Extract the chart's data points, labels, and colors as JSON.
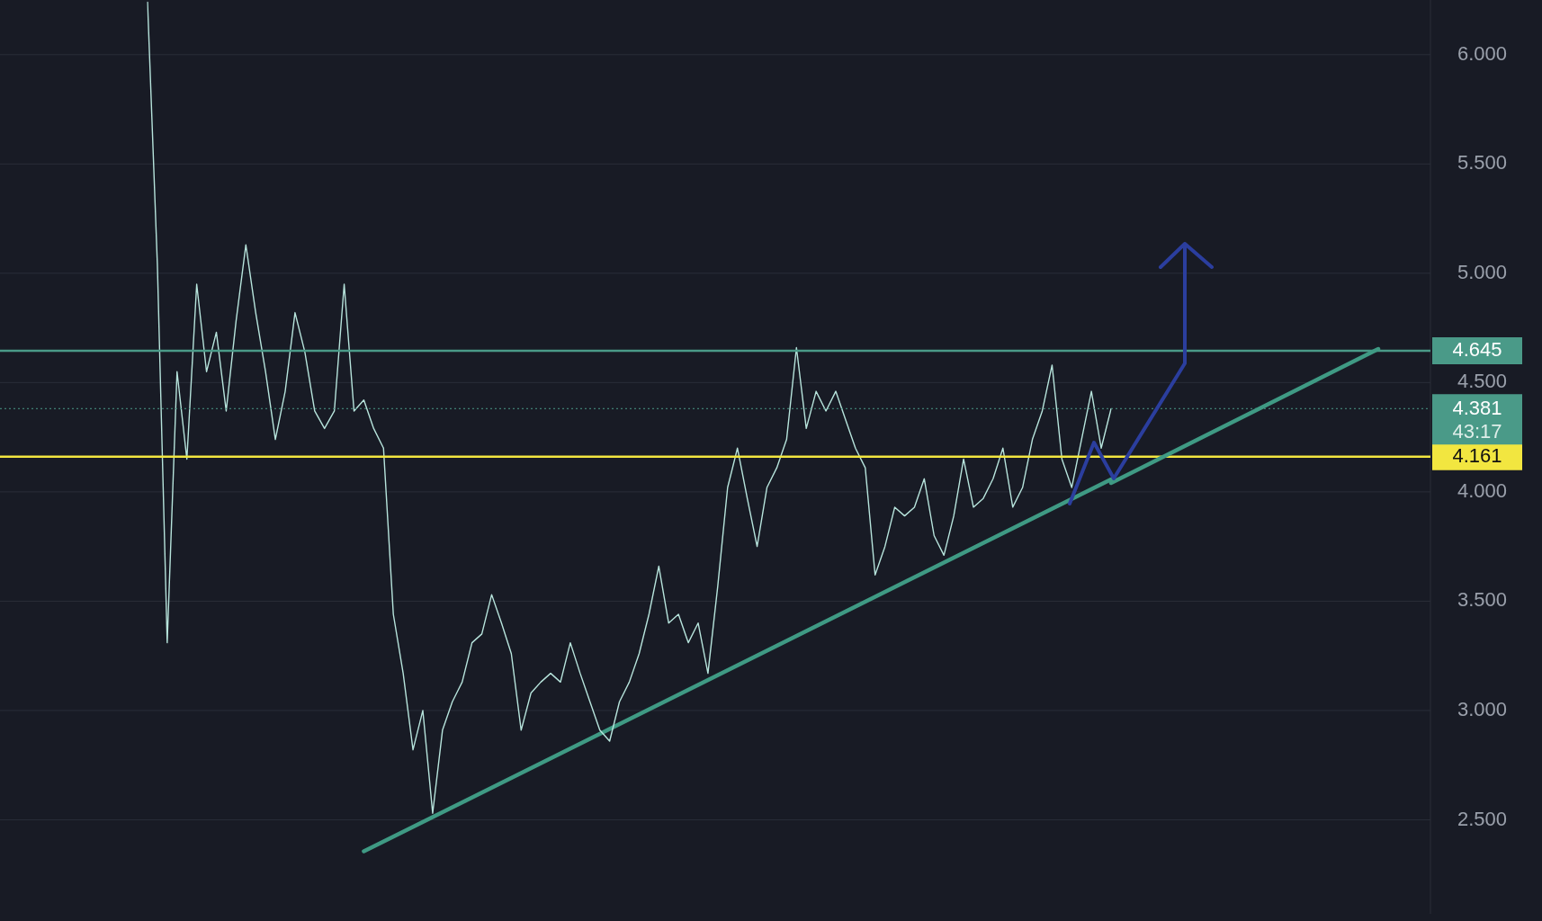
{
  "chart_data": {
    "type": "line",
    "tick_labels": "y",
    "grid": "y",
    "legend": false,
    "marker": "none",
    "categories": [
      null,
      null,
      null,
      null,
      null,
      null,
      null,
      null,
      null,
      null,
      null,
      null,
      null,
      null,
      null,
      null,
      null,
      null,
      null,
      null,
      null,
      null,
      null,
      null,
      null,
      null,
      null,
      null,
      null,
      null,
      null,
      null,
      null,
      null,
      null,
      null,
      null,
      null,
      null,
      null,
      null,
      null,
      null,
      null,
      null,
      null,
      null,
      null,
      null,
      null,
      null,
      null,
      null,
      null,
      null,
      null,
      null,
      null,
      null,
      null,
      null,
      null,
      null,
      null,
      null,
      null,
      null,
      null,
      null,
      null,
      null,
      null,
      null,
      null,
      null,
      null,
      null,
      null,
      null,
      null,
      null,
      null,
      null,
      null,
      null,
      null,
      null,
      null,
      null,
      null,
      null,
      null,
      null,
      null,
      null,
      null,
      null,
      null,
      null
    ],
    "ylim": [
      2.07,
      6.25
    ],
    "yticks": [
      {
        "value": 2.5,
        "label": "2.500"
      },
      {
        "value": 3,
        "label": "3.000"
      },
      {
        "value": 3.5,
        "label": "3.500"
      },
      {
        "value": 4,
        "label": "4.000"
      },
      {
        "value": 4.5,
        "label": "4.500"
      },
      {
        "value": 5,
        "label": "5.000"
      },
      {
        "value": 5.5,
        "label": "5.500"
      },
      {
        "value": 6,
        "label": "6.000"
      }
    ],
    "series": [
      {
        "color": "#b7e4dc",
        "values": [
          6.24,
          5.04,
          3.31,
          4.55,
          4.15,
          4.95,
          4.55,
          4.73,
          4.37,
          4.78,
          5.13,
          4.82,
          4.55,
          4.24,
          4.46,
          4.82,
          4.64,
          4.37,
          4.29,
          4.37,
          4.95,
          4.37,
          4.42,
          4.29,
          4.2,
          3.44,
          3.17,
          2.82,
          3.0,
          2.53,
          2.91,
          3.04,
          3.13,
          3.31,
          3.35,
          3.53,
          3.4,
          3.26,
          2.91,
          3.08,
          3.13,
          3.17,
          3.13,
          3.31,
          3.17,
          3.04,
          2.91,
          2.86,
          3.04,
          3.13,
          3.26,
          3.44,
          3.66,
          3.4,
          3.44,
          3.31,
          3.4,
          3.17,
          3.57,
          4.02,
          4.2,
          3.97,
          3.75,
          4.02,
          4.11,
          4.24,
          4.66,
          4.29,
          4.46,
          4.37,
          4.46,
          4.33,
          4.2,
          4.11,
          3.62,
          3.75,
          3.93,
          3.89,
          3.93,
          4.06,
          3.8,
          3.71,
          3.89,
          4.15,
          3.93,
          3.97,
          4.06,
          4.2,
          3.93,
          4.02,
          4.24,
          4.37,
          4.58,
          4.15,
          4.02,
          4.24,
          4.46,
          4.2,
          4.38
        ]
      },
      {
        "color": "#3f9a84",
        "values": [
          null,
          null,
          null,
          null,
          null,
          null,
          null,
          null,
          null,
          null,
          null,
          null,
          null,
          null,
          null,
          null,
          null,
          null,
          null,
          null,
          null,
          null,
          2.356,
          null,
          null,
          null,
          null,
          null,
          null,
          null,
          null,
          null,
          null,
          null,
          null,
          null,
          null,
          null,
          null,
          null,
          null,
          null,
          null,
          null,
          null,
          null,
          null,
          null,
          null,
          null,
          null,
          null,
          null,
          null,
          null,
          null,
          null,
          null,
          null,
          null,
          null,
          null,
          null,
          null,
          null,
          null,
          null,
          null,
          null,
          null,
          null,
          null,
          null,
          null,
          null,
          null,
          null,
          null,
          null,
          null,
          null,
          null,
          null,
          null,
          null,
          null,
          null,
          null,
          null,
          null,
          null,
          null,
          null,
          null,
          null,
          null,
          null,
          null,
          4.057
        ]
      }
    ],
    "ref_lines": [
      {
        "axis": "y",
        "value": 4.645,
        "label": "4.645",
        "color": "#4a9a88",
        "line_style": "solid"
      },
      {
        "axis": "y",
        "value": 4.161,
        "label": "4.161",
        "color": "#f2e640",
        "line_style": "solid"
      },
      {
        "axis": "y",
        "value": 4.381,
        "label": "4.381",
        "color": "#4a9a88",
        "line_style": "dotted"
      }
    ],
    "annotations": [
      "43:17"
    ]
  }
}
